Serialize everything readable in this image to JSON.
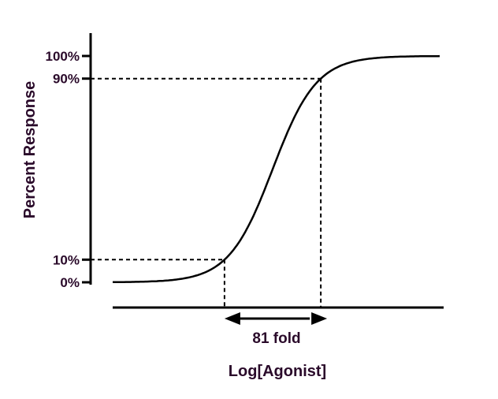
{
  "chart_data": {
    "type": "line",
    "title": "",
    "xlabel": "Log[Agonist]",
    "ylabel": "Percent Response",
    "ylim": [
      0,
      100
    ],
    "xlim": [
      -3.17,
      3.31
    ],
    "y_ticks": [
      {
        "value": 0,
        "label": "0%"
      },
      {
        "value": 10,
        "label": "10%"
      },
      {
        "value": 90,
        "label": "90%"
      },
      {
        "value": 100,
        "label": "100%"
      }
    ],
    "curve": {
      "model": "sigmoidal dose-response",
      "bottom": 0,
      "top": 100,
      "logEC50": 0,
      "hill_slope": 1
    },
    "reference_levels": [
      10,
      90
    ],
    "annotation": "81 fold",
    "grid": false,
    "color": "#000000",
    "text_color": "#2a0a2a"
  }
}
